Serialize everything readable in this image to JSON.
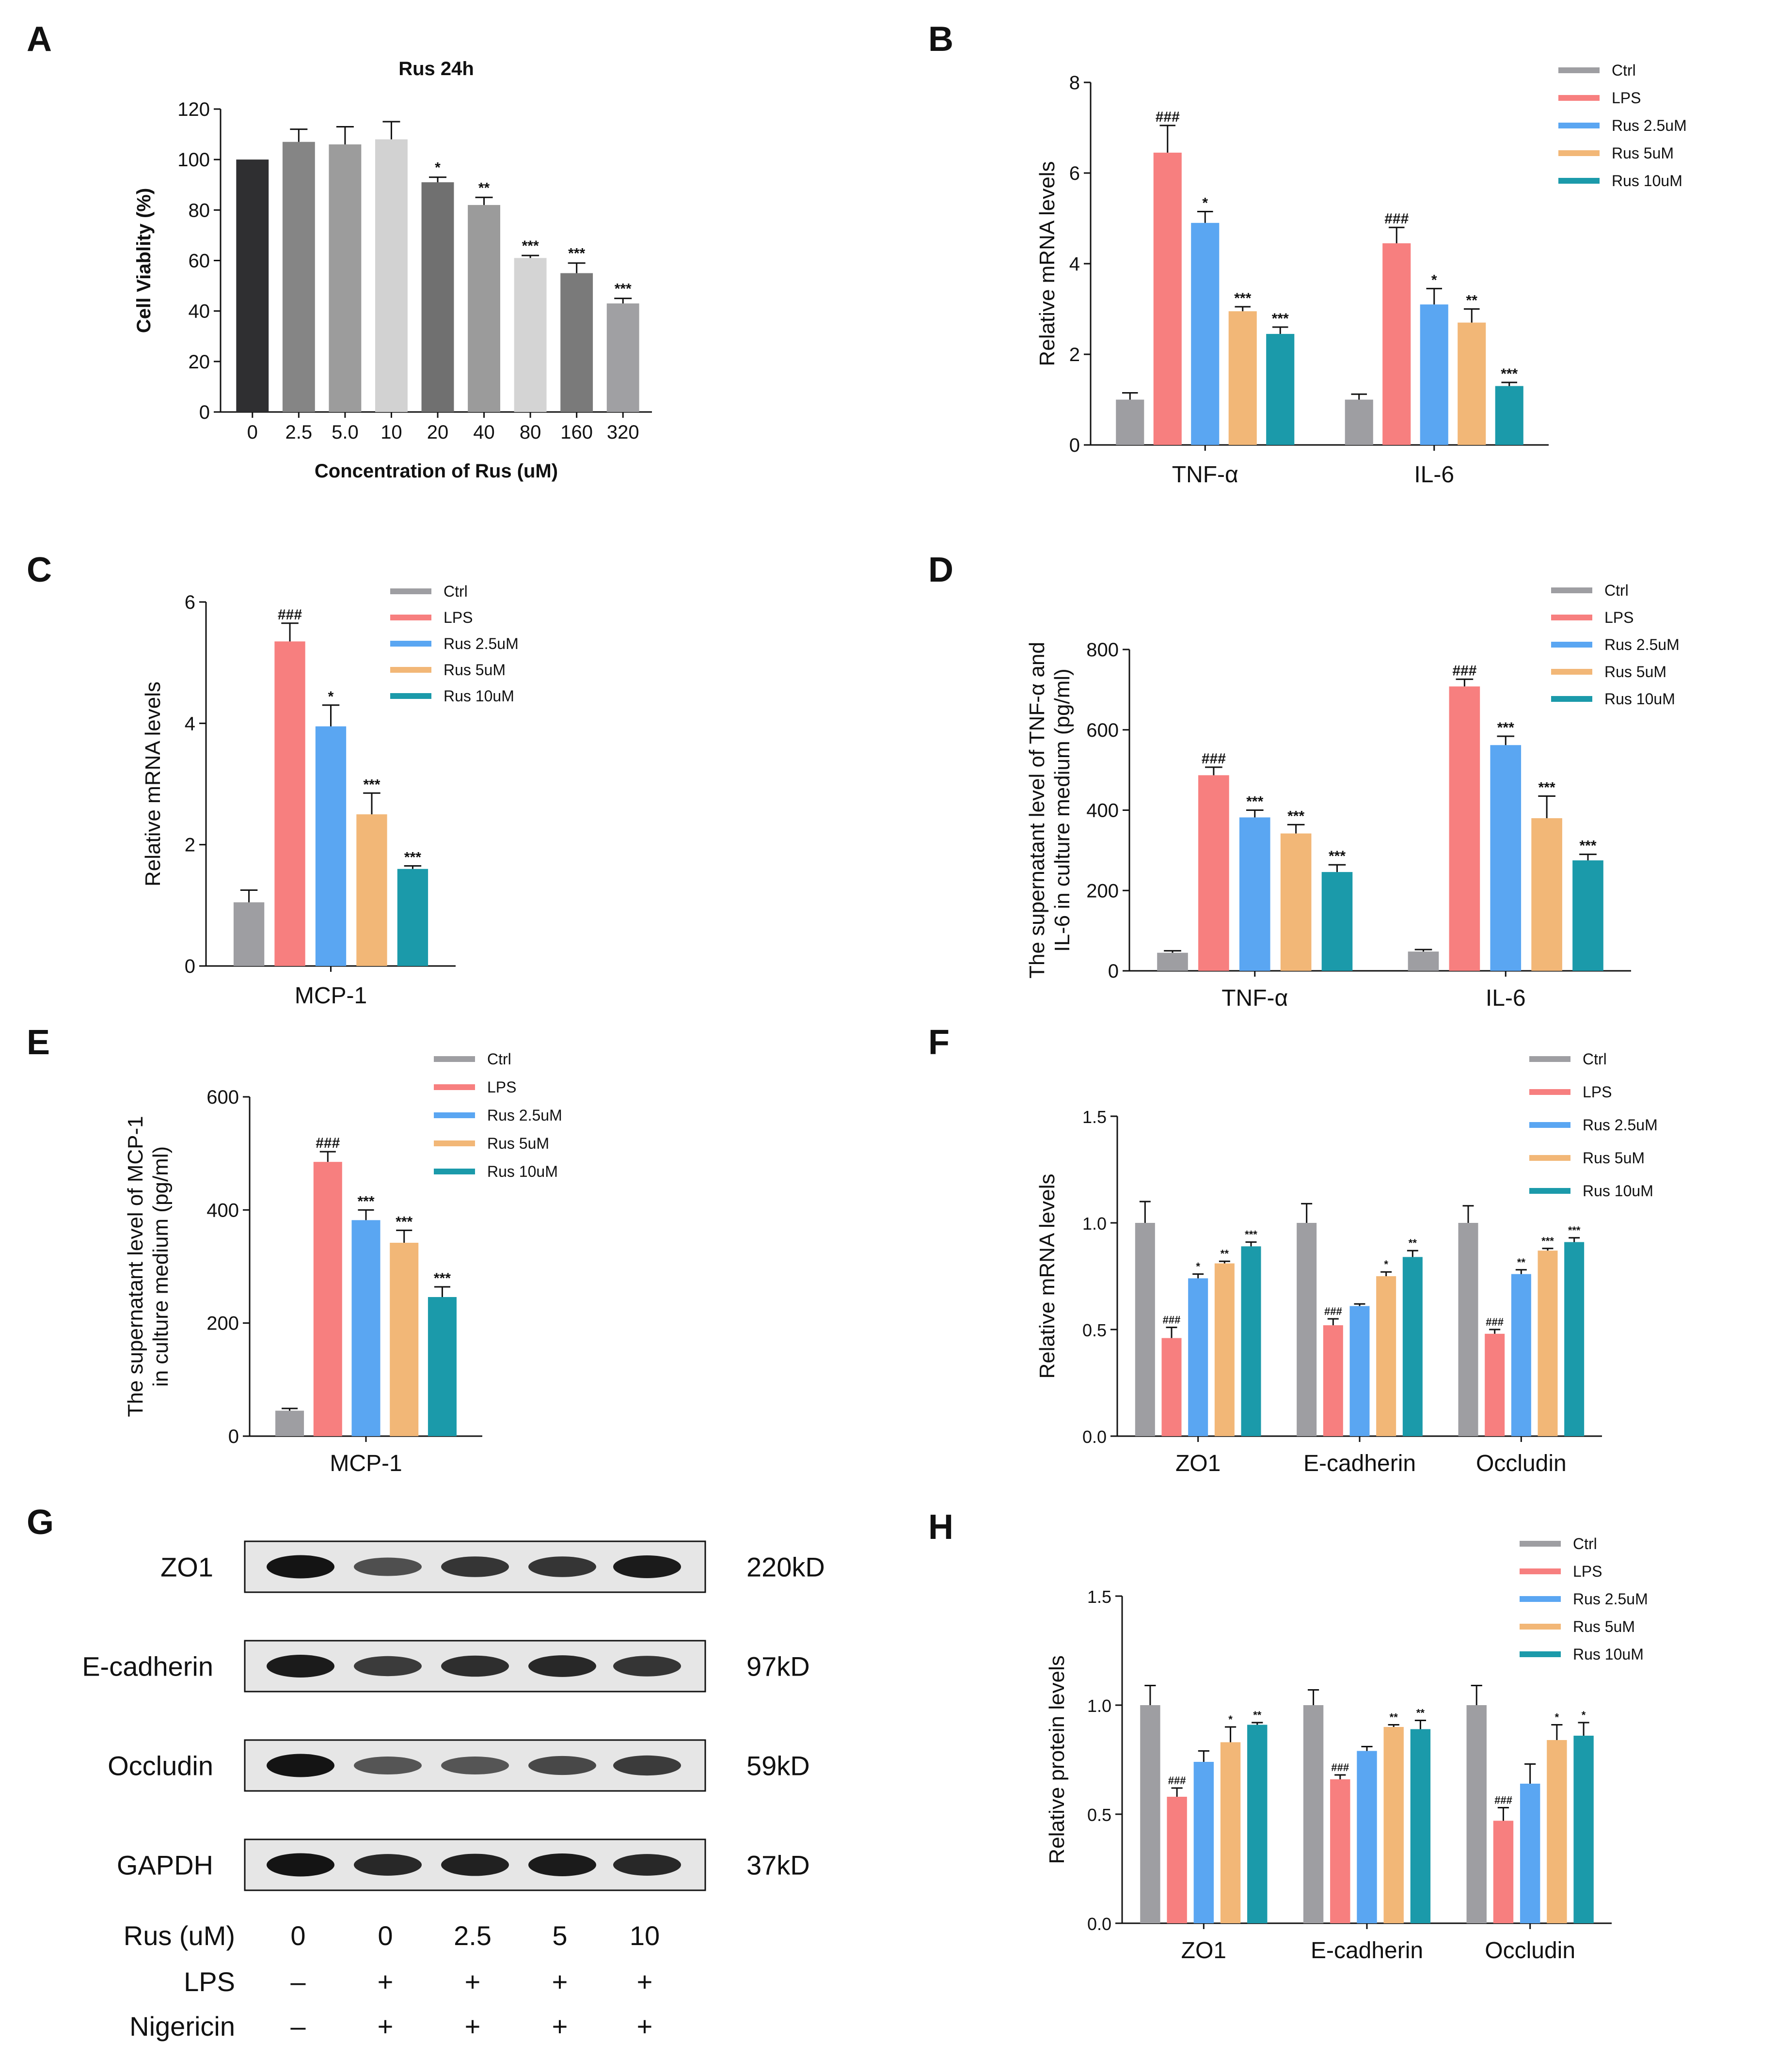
{
  "colors": {
    "ctrl": "#9e9ea2",
    "lps": "#f77f7f",
    "rus25": "#5aa6f2",
    "rus5": "#f2b777",
    "rus10": "#1b9aaa",
    "axis": "#111111"
  },
  "legend": [
    "Ctrl",
    "LPS",
    "Rus 2.5uM",
    "Rus 5uM",
    "Rus 10uM"
  ],
  "chart_data": [
    {
      "panel": "A",
      "type": "bar",
      "title": "Rus  24h",
      "xlabel": "Concentration of Rus (uM)",
      "ylabel": "Cell Viablity (%)",
      "ylim": [
        0,
        120
      ],
      "yticks": [
        0,
        20,
        40,
        60,
        80,
        100,
        120
      ],
      "categories": [
        "0",
        "2.5",
        "5.0",
        "10",
        "20",
        "40",
        "80",
        "160",
        "320"
      ],
      "values": [
        100,
        107,
        106,
        108,
        91,
        82,
        61,
        55,
        43
      ],
      "errors": [
        0,
        5,
        7,
        7,
        2,
        3,
        1,
        4,
        2
      ],
      "bar_colors": [
        "#2f2f31",
        "#858585",
        "#9c9c9c",
        "#d2d2d2",
        "#707070",
        "#9b9b9b",
        "#d4d4d4",
        "#7a7a7a",
        "#a0a0a3"
      ],
      "significance": [
        "",
        "",
        "",
        "",
        "*",
        "**",
        "***",
        "***",
        "***"
      ]
    },
    {
      "panel": "B",
      "type": "bar",
      "ylabel": "Relative  mRNA levels",
      "ylim": [
        0,
        8
      ],
      "yticks": [
        0,
        2,
        4,
        6,
        8
      ],
      "categories": [
        "TNF-α",
        "IL-6"
      ],
      "series": [
        {
          "name": "Ctrl",
          "values": [
            1.0,
            1.0
          ],
          "errors": [
            0.15,
            0.12
          ],
          "sig": [
            "",
            ""
          ]
        },
        {
          "name": "LPS",
          "values": [
            6.45,
            4.45
          ],
          "errors": [
            0.6,
            0.35
          ],
          "sig": [
            "###",
            "###"
          ]
        },
        {
          "name": "Rus 2.5uM",
          "values": [
            4.9,
            3.1
          ],
          "errors": [
            0.25,
            0.35
          ],
          "sig": [
            "*",
            "*"
          ]
        },
        {
          "name": "Rus 5uM",
          "values": [
            2.95,
            2.7
          ],
          "errors": [
            0.1,
            0.3
          ],
          "sig": [
            "***",
            "**"
          ]
        },
        {
          "name": "Rus 10uM",
          "values": [
            2.45,
            1.3
          ],
          "errors": [
            0.15,
            0.08
          ],
          "sig": [
            "***",
            "***"
          ]
        }
      ]
    },
    {
      "panel": "C",
      "type": "bar",
      "ylabel": "Relative  mRNA levels",
      "ylim": [
        0,
        6
      ],
      "yticks": [
        0,
        2,
        4,
        6
      ],
      "categories": [
        "MCP-1"
      ],
      "series": [
        {
          "name": "Ctrl",
          "values": [
            1.05
          ],
          "errors": [
            0.2
          ],
          "sig": [
            ""
          ]
        },
        {
          "name": "LPS",
          "values": [
            5.35
          ],
          "errors": [
            0.3
          ],
          "sig": [
            "###"
          ]
        },
        {
          "name": "Rus 2.5uM",
          "values": [
            3.95
          ],
          "errors": [
            0.35
          ],
          "sig": [
            "*"
          ]
        },
        {
          "name": "Rus 5uM",
          "values": [
            2.5
          ],
          "errors": [
            0.35
          ],
          "sig": [
            "***"
          ]
        },
        {
          "name": "Rus 10uM",
          "values": [
            1.6
          ],
          "errors": [
            0.05
          ],
          "sig": [
            "***"
          ]
        }
      ]
    },
    {
      "panel": "D",
      "type": "bar",
      "ylabel": "The supernatant level of TNF-α  and",
      "ylabel2": "IL-6  in culture medium (pg/ml)",
      "ylim": [
        0,
        800
      ],
      "yticks": [
        0,
        200,
        400,
        600,
        800
      ],
      "categories": [
        "TNF-α",
        "IL-6"
      ],
      "series": [
        {
          "name": "Ctrl",
          "values": [
            45,
            48
          ],
          "errors": [
            5,
            5
          ],
          "sig": [
            "",
            ""
          ]
        },
        {
          "name": "LPS",
          "values": [
            487,
            708
          ],
          "errors": [
            20,
            18
          ],
          "sig": [
            "###",
            "###"
          ]
        },
        {
          "name": "Rus 2.5uM",
          "values": [
            382,
            562
          ],
          "errors": [
            18,
            22
          ],
          "sig": [
            "***",
            "***"
          ]
        },
        {
          "name": "Rus 5uM",
          "values": [
            342,
            380
          ],
          "errors": [
            22,
            55
          ],
          "sig": [
            "***",
            "***"
          ]
        },
        {
          "name": "Rus 10uM",
          "values": [
            246,
            275
          ],
          "errors": [
            18,
            15
          ],
          "sig": [
            "***",
            "***"
          ]
        }
      ]
    },
    {
      "panel": "E",
      "type": "bar",
      "ylabel": "The supernatant level of MCP-1",
      "ylabel2": "in culture medium (pg/ml)",
      "ylim": [
        0,
        600
      ],
      "yticks": [
        0,
        200,
        400,
        600
      ],
      "categories": [
        "MCP-1"
      ],
      "series": [
        {
          "name": "Ctrl",
          "values": [
            45
          ],
          "errors": [
            4
          ],
          "sig": [
            ""
          ]
        },
        {
          "name": "LPS",
          "values": [
            485
          ],
          "errors": [
            18
          ],
          "sig": [
            "###"
          ]
        },
        {
          "name": "Rus 2.5uM",
          "values": [
            382
          ],
          "errors": [
            18
          ],
          "sig": [
            "***"
          ]
        },
        {
          "name": "Rus 5uM",
          "values": [
            342
          ],
          "errors": [
            22
          ],
          "sig": [
            "***"
          ]
        },
        {
          "name": "Rus 10uM",
          "values": [
            246
          ],
          "errors": [
            18
          ],
          "sig": [
            "***"
          ]
        }
      ]
    },
    {
      "panel": "F",
      "type": "bar",
      "ylabel": "Relative  mRNA levels",
      "ylim": [
        0,
        1.5
      ],
      "yticks": [
        "0.0",
        "0.5",
        "1.0",
        "1.5"
      ],
      "categories": [
        "ZO1",
        "E-cadherin",
        "Occludin"
      ],
      "series": [
        {
          "name": "Ctrl",
          "values": [
            1.0,
            1.0,
            1.0
          ],
          "errors": [
            0.1,
            0.09,
            0.08
          ],
          "sig": [
            "",
            "",
            ""
          ]
        },
        {
          "name": "LPS",
          "values": [
            0.46,
            0.52,
            0.48
          ],
          "errors": [
            0.05,
            0.03,
            0.02
          ],
          "sig": [
            "###",
            "###",
            "###"
          ]
        },
        {
          "name": "Rus 2.5uM",
          "values": [
            0.74,
            0.61,
            0.76
          ],
          "errors": [
            0.02,
            0.01,
            0.02
          ],
          "sig": [
            "*",
            "",
            "**"
          ]
        },
        {
          "name": "Rus 5uM",
          "values": [
            0.81,
            0.75,
            0.87
          ],
          "errors": [
            0.01,
            0.02,
            0.01
          ],
          "sig": [
            "**",
            "*",
            "***"
          ]
        },
        {
          "name": "Rus 10uM",
          "values": [
            0.89,
            0.84,
            0.91
          ],
          "errors": [
            0.02,
            0.03,
            0.02
          ],
          "sig": [
            "***",
            "**",
            "***"
          ]
        }
      ]
    },
    {
      "panel": "H",
      "type": "bar",
      "ylabel": "Relative protein levels",
      "ylim": [
        0,
        1.5
      ],
      "yticks": [
        "0.0",
        "0.5",
        "1.0",
        "1.5"
      ],
      "categories": [
        "ZO1",
        "E-cadherin",
        "Occludin"
      ],
      "series": [
        {
          "name": "Ctrl",
          "values": [
            1.0,
            1.0,
            1.0
          ],
          "errors": [
            0.09,
            0.07,
            0.09
          ],
          "sig": [
            "",
            "",
            ""
          ]
        },
        {
          "name": "LPS",
          "values": [
            0.58,
            0.66,
            0.47
          ],
          "errors": [
            0.04,
            0.02,
            0.06
          ],
          "sig": [
            "###",
            "###",
            "###"
          ]
        },
        {
          "name": "Rus 2.5uM",
          "values": [
            0.74,
            0.79,
            0.64
          ],
          "errors": [
            0.05,
            0.02,
            0.09
          ],
          "sig": [
            "",
            "",
            ""
          ]
        },
        {
          "name": "Rus 5uM",
          "values": [
            0.83,
            0.9,
            0.84
          ],
          "errors": [
            0.07,
            0.01,
            0.07
          ],
          "sig": [
            "*",
            "**",
            "*"
          ]
        },
        {
          "name": "Rus 10uM",
          "values": [
            0.91,
            0.89,
            0.86
          ],
          "errors": [
            0.01,
            0.04,
            0.06
          ],
          "sig": [
            "**",
            "**",
            "*"
          ]
        }
      ]
    }
  ],
  "western_blot": {
    "panel": "G",
    "proteins": [
      {
        "name": "ZO1",
        "size": "220kD",
        "intensities": [
          1.0,
          0.55,
          0.75,
          0.75,
          0.95
        ]
      },
      {
        "name": "E-cadherin",
        "size": "97kD",
        "intensities": [
          0.95,
          0.7,
          0.8,
          0.85,
          0.75
        ]
      },
      {
        "name": "Occludin",
        "size": "59kD",
        "intensities": [
          1.0,
          0.5,
          0.5,
          0.6,
          0.7
        ]
      },
      {
        "name": "GAPDH",
        "size": "37kD",
        "intensities": [
          1.0,
          0.85,
          0.9,
          0.95,
          0.85
        ]
      }
    ],
    "conditions": [
      {
        "label": "Rus (uM)",
        "values": [
          "0",
          "0",
          "2.5",
          "5",
          "10"
        ]
      },
      {
        "label": "LPS",
        "values": [
          "–",
          "+",
          "+",
          "+",
          "+"
        ]
      },
      {
        "label": "Nigericin",
        "values": [
          "–",
          "+",
          "+",
          "+",
          "+"
        ]
      }
    ]
  }
}
